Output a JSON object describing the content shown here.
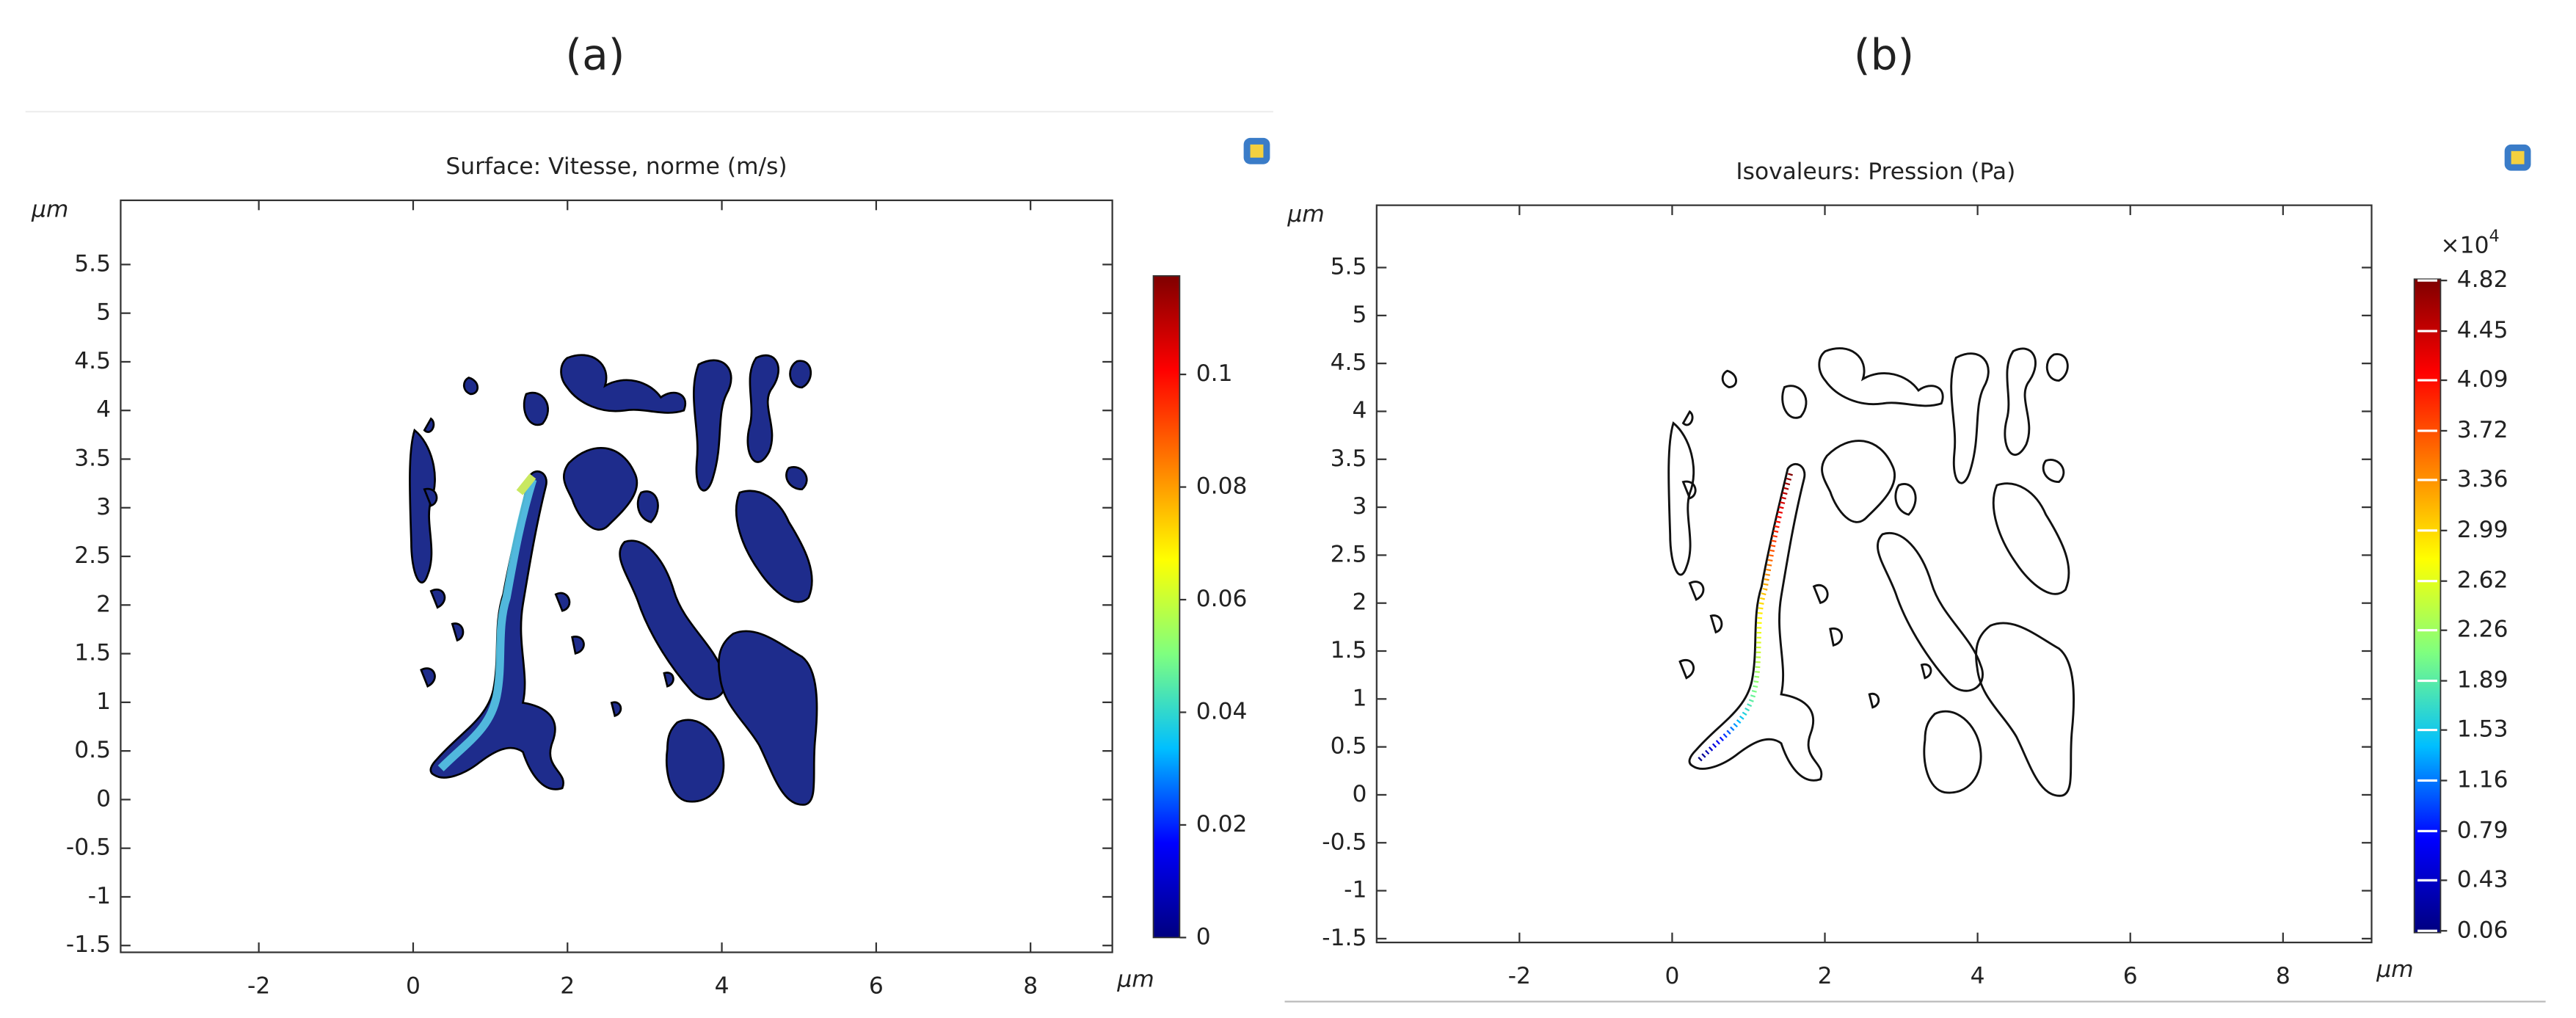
{
  "chart_data": [
    {
      "type": "surface",
      "label": "(a)",
      "title": "Surface: Vitesse, norme (m/s)",
      "x_unit": "µm",
      "y_unit": "µm",
      "xlim": [
        -3.79,
        9.06
      ],
      "xticks": [
        -2,
        0,
        2,
        4,
        6,
        8
      ],
      "ylim": [
        -1.57,
        6.16
      ],
      "yticks": [
        -1.5,
        -1,
        -0.5,
        0,
        0.5,
        1,
        1.5,
        2,
        2.5,
        3,
        3.5,
        4,
        4.5,
        5,
        5.5
      ],
      "colorbar": {
        "lim": [
          0,
          0.1175
        ],
        "ticks": [
          0,
          0.02,
          0.04,
          0.06,
          0.08,
          0.1
        ],
        "colors": [
          "#00007f",
          "#0000ff",
          "#00bfff",
          "#7fff7f",
          "#ffff00",
          "#ff7f00",
          "#ff0000",
          "#7f0000"
        ]
      }
    },
    {
      "type": "contour",
      "label": "(b)",
      "title": "Isovaleurs: Pression (Pa)",
      "x_unit": "µm",
      "y_unit": "µm",
      "xlim": [
        -3.87,
        9.16
      ],
      "xticks": [
        -2,
        0,
        2,
        4,
        6,
        8
      ],
      "ylim": [
        -1.54,
        6.15
      ],
      "yticks": [
        -1.5,
        -1,
        -0.5,
        0,
        0.5,
        1,
        1.5,
        2,
        2.5,
        3,
        3.5,
        4,
        4.5,
        5,
        5.5
      ],
      "colorbar": {
        "lim": [
          0.047,
          4.83
        ],
        "ticks": [
          0.06,
          0.43,
          0.79,
          1.16,
          1.53,
          1.89,
          2.26,
          2.62,
          2.99,
          3.36,
          3.72,
          4.09,
          4.45,
          4.82
        ],
        "multiplier": "×10",
        "exponent": "4",
        "colors": [
          "#00007f",
          "#0000ff",
          "#00bfff",
          "#7fff7f",
          "#ffff00",
          "#ff7f00",
          "#ff0000",
          "#7f0000"
        ]
      }
    }
  ]
}
